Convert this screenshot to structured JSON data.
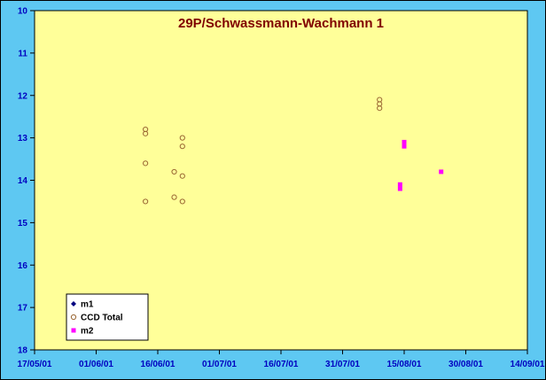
{
  "chart_data": {
    "type": "scatter",
    "title": "29P/Schwassmann-Wachmann 1",
    "xlabel": "",
    "ylabel": "",
    "x_ticks": [
      "17/05/01",
      "01/06/01",
      "16/06/01",
      "01/07/01",
      "16/07/01",
      "31/07/01",
      "15/08/01",
      "30/08/01",
      "14/09/01"
    ],
    "x_range": [
      "17/05/01",
      "14/09/01"
    ],
    "y_ticks": [
      10,
      11,
      12,
      13,
      14,
      15,
      16,
      17,
      18
    ],
    "ylim": [
      10,
      18
    ],
    "y_inverted": true,
    "grid": false,
    "legend_position": "bottom-left",
    "series": [
      {
        "name": "m1",
        "marker": "filled-diamond",
        "color": "#000080",
        "points": []
      },
      {
        "name": "CCD Total",
        "marker": "open-circle",
        "color": "#996633",
        "points": [
          {
            "x": "13/06/01",
            "y": 12.8
          },
          {
            "x": "13/06/01",
            "y": 12.9
          },
          {
            "x": "13/06/01",
            "y": 13.6
          },
          {
            "x": "13/06/01",
            "y": 14.5
          },
          {
            "x": "20/06/01",
            "y": 13.8
          },
          {
            "x": "20/06/01",
            "y": 14.4
          },
          {
            "x": "22/06/01",
            "y": 13.0
          },
          {
            "x": "22/06/01",
            "y": 13.2
          },
          {
            "x": "22/06/01",
            "y": 13.9
          },
          {
            "x": "22/06/01",
            "y": 14.5
          },
          {
            "x": "09/08/01",
            "y": 12.1
          },
          {
            "x": "09/08/01",
            "y": 12.2
          },
          {
            "x": "09/08/01",
            "y": 12.3
          }
        ]
      },
      {
        "name": "m2",
        "marker": "filled-square",
        "color": "#ff00ff",
        "points": [
          {
            "x": "14/08/01",
            "y": 14.1
          },
          {
            "x": "14/08/01",
            "y": 14.2
          },
          {
            "x": "15/08/01",
            "y": 13.1
          },
          {
            "x": "15/08/01",
            "y": 13.2
          },
          {
            "x": "24/08/01",
            "y": 13.8
          }
        ]
      }
    ]
  },
  "colors": {
    "outer_background": "#5ec8f2",
    "plot_background": "#ffff99",
    "tick_label": "#0000c0",
    "title": "#800000"
  }
}
